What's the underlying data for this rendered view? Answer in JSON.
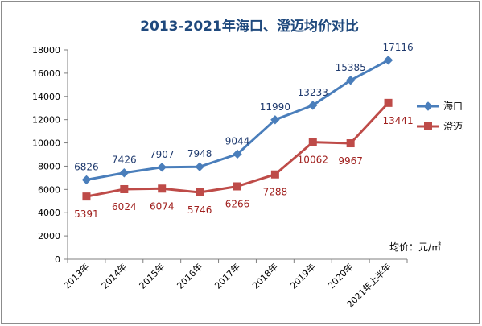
{
  "chart_data": {
    "type": "line",
    "title": "2013-2021年海口、澄迈均价对比",
    "unit_label": "均价：元/㎡",
    "categories": [
      "2013年",
      "2014年",
      "2015年",
      "2016年",
      "2017年",
      "2018年",
      "2019年",
      "2020年",
      "2021年上半年"
    ],
    "ylim": [
      0,
      18000
    ],
    "yticks": [
      0,
      2000,
      4000,
      6000,
      8000,
      10000,
      12000,
      14000,
      16000,
      18000
    ],
    "grid": false,
    "legend_position": "right",
    "series": [
      {
        "name": "海口",
        "color": "#4a7ebb",
        "label_color": "#1f3a6e",
        "marker": "diamond",
        "values": [
          6826,
          7426,
          7907,
          7948,
          9044,
          11990,
          13233,
          15385,
          17116
        ],
        "label_placement": "above"
      },
      {
        "name": "澄迈",
        "color": "#be4b48",
        "label_color": "#a0201e",
        "marker": "square",
        "values": [
          5391,
          6024,
          6074,
          5746,
          6266,
          7288,
          10062,
          9967,
          13441
        ],
        "label_placement": "below"
      }
    ],
    "colors": {
      "title": "#1f497d",
      "axis": "#7f7f7f"
    }
  }
}
